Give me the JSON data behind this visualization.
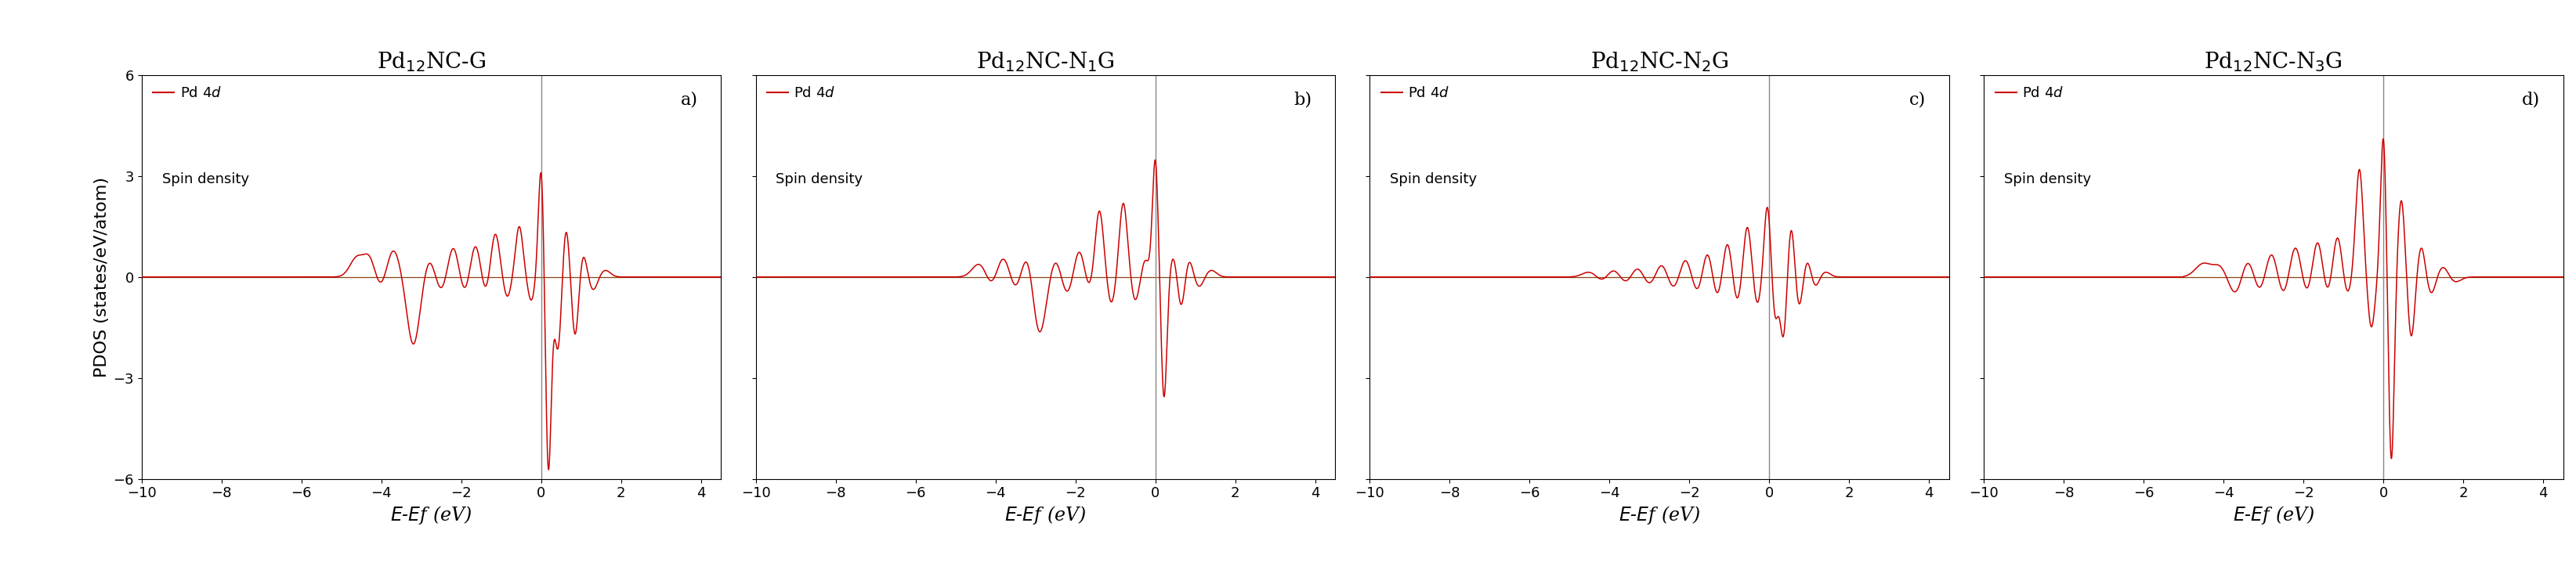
{
  "panels": [
    {
      "title_parts": [
        "Pd",
        "12",
        "NC-G"
      ],
      "label": "a)",
      "legend_line": "Pd 4$d$",
      "legend_text2": "Spin density"
    },
    {
      "title_parts": [
        "Pd",
        "12",
        "NC-N",
        "1",
        "G"
      ],
      "label": "b)",
      "legend_line": "Pd 4$d$",
      "legend_text2": "Spin density"
    },
    {
      "title_parts": [
        "Pd",
        "12",
        "NC-N",
        "2",
        "G"
      ],
      "label": "c)",
      "legend_line": "Pd 4$d$",
      "legend_text2": "Spin density"
    },
    {
      "title_parts": [
        "Pd",
        "12",
        "NC-N",
        "3",
        "G"
      ],
      "label": "d)",
      "legend_line": "Pd 4$d$",
      "legend_text2": "Spin density"
    }
  ],
  "titles": [
    "Pd$_{12}$NC-G",
    "Pd$_{12}$NC-N$_1$G",
    "Pd$_{12}$NC-N$_2$G",
    "Pd$_{12}$NC-N$_3$G"
  ],
  "xlim": [
    -10,
    4.5
  ],
  "ylim": [
    -6,
    6
  ],
  "xticks": [
    -10,
    -8,
    -6,
    -4,
    -2,
    0,
    2,
    4
  ],
  "yticks": [
    -6,
    -3,
    0,
    3,
    6
  ],
  "xlabel": "$E$-$E$f (eV)",
  "ylabel": "PDOS (states/eV/atom)",
  "line_color": "#cc0000",
  "vline_color": "#888888",
  "hline_color": "#8B4513",
  "background_color": "#ffffff",
  "title_fontsize": 20,
  "label_fontsize": 16,
  "tick_fontsize": 13,
  "axis_label_fontsize": 17,
  "legend_fontsize": 13
}
